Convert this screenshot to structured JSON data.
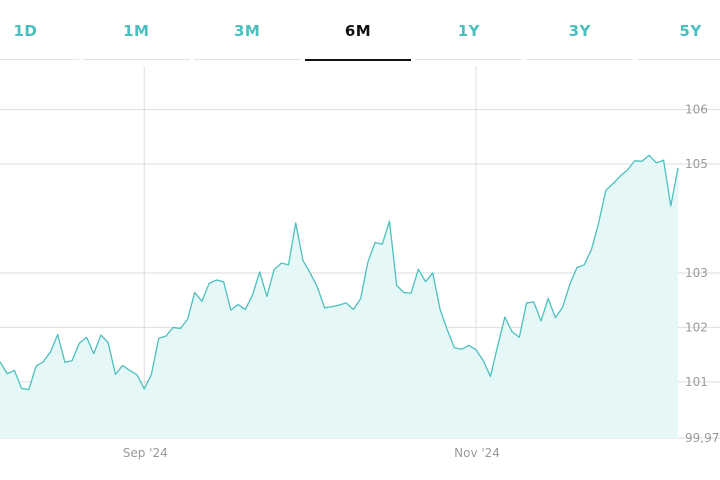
{
  "tabs": [
    {
      "label": "1D",
      "active": false
    },
    {
      "label": "1M",
      "active": false
    },
    {
      "label": "3M",
      "active": false
    },
    {
      "label": "6M",
      "active": true
    },
    {
      "label": "1Y",
      "active": false
    },
    {
      "label": "3Y",
      "active": false
    },
    {
      "label": "5Y",
      "active": false
    }
  ],
  "colors": {
    "accent": "#49bfc0",
    "line": "#4cc0bd",
    "fill": "#e6f7f7",
    "grid": "#dedede",
    "active_tab": "#111111"
  },
  "chart_data": {
    "type": "area",
    "title": "",
    "xlabel": "",
    "ylabel": "",
    "ylim": [
      99.97,
      106.8
    ],
    "y_ticks": [
      99.97,
      101,
      102,
      103,
      105,
      106
    ],
    "y_tick_labels": [
      "99,97",
      "101",
      "102",
      "103",
      "105",
      "106"
    ],
    "x_ticks": [
      {
        "label": "Sep '24",
        "index": 20
      },
      {
        "label": "Nov '24",
        "index": 66
      }
    ],
    "grid": true,
    "y_axis_side": "right",
    "values": [
      101.37,
      101.15,
      101.21,
      100.88,
      100.86,
      101.29,
      101.37,
      101.55,
      101.87,
      101.36,
      101.39,
      101.71,
      101.82,
      101.52,
      101.86,
      101.72,
      101.14,
      101.3,
      101.21,
      101.13,
      100.87,
      101.14,
      101.8,
      101.84,
      102.0,
      101.98,
      102.15,
      102.64,
      102.48,
      102.81,
      102.87,
      102.84,
      102.32,
      102.42,
      102.33,
      102.59,
      103.02,
      102.57,
      103.06,
      103.18,
      103.15,
      103.92,
      103.23,
      103.0,
      102.74,
      102.36,
      102.38,
      102.41,
      102.45,
      102.33,
      102.53,
      103.2,
      103.56,
      103.53,
      103.95,
      102.77,
      102.64,
      102.63,
      103.07,
      102.84,
      103.0,
      102.34,
      101.96,
      101.63,
      101.6,
      101.67,
      101.59,
      101.39,
      101.1,
      101.66,
      102.19,
      101.92,
      101.82,
      102.45,
      102.47,
      102.12,
      102.53,
      102.18,
      102.37,
      102.79,
      103.1,
      103.15,
      103.43,
      103.92,
      104.52,
      104.64,
      104.78,
      104.89,
      105.06,
      105.05,
      105.16,
      105.02,
      105.07,
      104.23,
      104.93
    ]
  }
}
